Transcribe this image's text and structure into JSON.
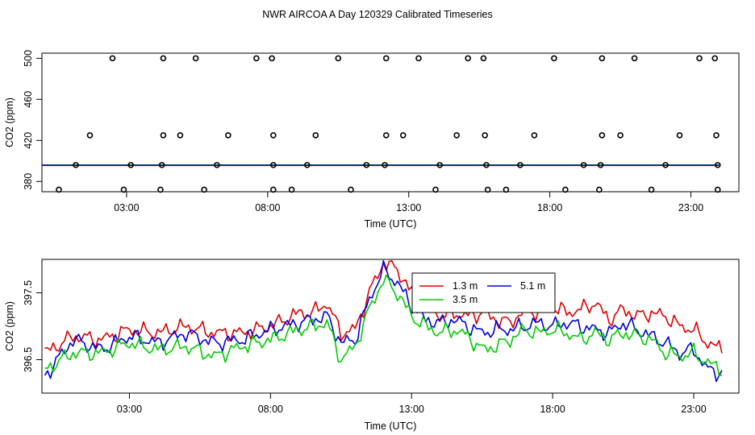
{
  "title": "NWR AIRCOA A  Day 120329  Calibrated Timeseries",
  "colors": {
    "red": "#dd0000",
    "green": "#00cc00",
    "blue": "#0000dd",
    "axis": "#000000"
  },
  "chart_data": [
    {
      "type": "scatter",
      "xlabel": "Time (UTC)",
      "ylabel": "CO2 (ppm)",
      "xlim": [
        0.0,
        24.7
      ],
      "ylim": [
        370.0,
        505.0
      ],
      "xticks": [
        3,
        8,
        13,
        18,
        23
      ],
      "xtick_labels": [
        "03:00",
        "08:00",
        "13:00",
        "18:00",
        "23:00"
      ],
      "yticks": [
        380,
        420,
        460,
        500
      ],
      "ytick_labels": [
        "380",
        "420",
        "460",
        "500"
      ],
      "points": {
        "x": [
          2.5,
          4.3,
          5.45,
          7.6,
          8.15,
          10.5,
          12.2,
          13.35,
          15.1,
          15.65,
          18.15,
          19.85,
          21.0,
          23.3,
          23.85,
          1.7,
          4.3,
          4.9,
          6.6,
          8.2,
          9.7,
          12.2,
          12.8,
          14.7,
          15.7,
          17.45,
          19.85,
          20.5,
          22.6,
          23.9,
          1.2,
          3.15,
          4.25,
          6.2,
          8.2,
          9.4,
          11.5,
          12.15,
          14.1,
          15.75,
          16.95,
          19.2,
          19.8,
          22.1,
          23.95,
          0.6,
          2.9,
          4.2,
          5.75,
          8.2,
          8.85,
          10.95,
          13.95,
          15.8,
          16.45,
          18.55,
          19.75,
          21.6,
          23.95
        ],
        "y": [
          500,
          500,
          500,
          500,
          500,
          500,
          500,
          500,
          500,
          500,
          500,
          500,
          500,
          500,
          500,
          425,
          425,
          425,
          425,
          425,
          425,
          425,
          425,
          425,
          425,
          425,
          425,
          425,
          425,
          425,
          396,
          396,
          396,
          396,
          396,
          396,
          396,
          396,
          396,
          396,
          396,
          396,
          396,
          396,
          396,
          372,
          372,
          372,
          372,
          372,
          372,
          372,
          372,
          372,
          372,
          372,
          372,
          372,
          372
        ]
      },
      "reference_line": {
        "x_start": 0.0,
        "x_end": 24.0,
        "y": 395.8
      }
    },
    {
      "type": "line",
      "xlabel": "Time (UTC)",
      "ylabel": "CO2 (ppm)",
      "xlim": [
        -0.1,
        24.6
      ],
      "ylim": [
        396.0,
        398.0
      ],
      "xticks": [
        3,
        8,
        13,
        18,
        23
      ],
      "xtick_labels": [
        "03:00",
        "08:00",
        "13:00",
        "18:00",
        "23:00"
      ],
      "yticks": [
        396.5,
        397.5
      ],
      "ytick_labels": [
        "396.5",
        "397.5"
      ],
      "legend": [
        "1.3 m",
        "5.1 m",
        "3.5 m"
      ],
      "series": [
        {
          "name": "1.3 m",
          "color": "#dd0000",
          "x": [
            0,
            1,
            2,
            3,
            4,
            5,
            6,
            7,
            8,
            9,
            9.5,
            10,
            10.5,
            11,
            11.5,
            12,
            12.5,
            13,
            13.5,
            14,
            14.5,
            15,
            15.5,
            16,
            16.5,
            17,
            17.5,
            18,
            18.5,
            19,
            19.5,
            20,
            20.5,
            21,
            21.5,
            22,
            22.5,
            23,
            23.5,
            24
          ],
          "y": [
            396.6,
            396.85,
            396.8,
            396.95,
            396.9,
            397.0,
            396.9,
            396.9,
            397.0,
            397.2,
            397.2,
            397.35,
            396.9,
            396.95,
            397.5,
            397.95,
            397.85,
            397.5,
            397.35,
            397.15,
            397.2,
            397.15,
            397.2,
            397.1,
            397.05,
            397.25,
            397.2,
            397.3,
            397.2,
            397.25,
            397.35,
            397.1,
            397.25,
            397.15,
            397.2,
            397.15,
            397.0,
            396.95,
            396.75,
            396.65
          ]
        },
        {
          "name": "3.5 m",
          "color": "#00cc00",
          "x": [
            0,
            1,
            2,
            3,
            4,
            5,
            6,
            7,
            8,
            9,
            9.5,
            10,
            10.5,
            11,
            11.5,
            12,
            12.5,
            13,
            13.5,
            14,
            14.5,
            15,
            15.5,
            16,
            16.5,
            17,
            17.5,
            18,
            18.5,
            19,
            19.5,
            20,
            20.5,
            21,
            21.5,
            22,
            22.5,
            23,
            23.5,
            24
          ],
          "y": [
            396.35,
            396.6,
            396.6,
            396.75,
            396.65,
            396.7,
            396.55,
            396.7,
            396.8,
            396.95,
            397.0,
            397.05,
            396.5,
            396.7,
            397.25,
            397.7,
            397.5,
            397.15,
            397.0,
            396.9,
            396.95,
            396.85,
            396.65,
            396.7,
            396.8,
            396.95,
            396.9,
            396.95,
            396.9,
            396.8,
            396.9,
            396.8,
            396.9,
            396.85,
            396.8,
            396.6,
            396.55,
            396.6,
            396.45,
            396.35
          ]
        },
        {
          "name": "5.1 m",
          "color": "#0000dd",
          "x": [
            0,
            1,
            2,
            3,
            4,
            5,
            6,
            7,
            8,
            9,
            9.5,
            10,
            10.5,
            11,
            11.5,
            12,
            12.5,
            13,
            13.5,
            14,
            14.5,
            15,
            15.5,
            16,
            16.5,
            17,
            17.5,
            18,
            18.5,
            19,
            19.5,
            20,
            20.5,
            21,
            21.5,
            22,
            22.5,
            23,
            23.5,
            24
          ],
          "y": [
            396.25,
            396.8,
            396.65,
            396.85,
            396.75,
            396.9,
            396.75,
            396.8,
            396.95,
            397.05,
            397.1,
            397.15,
            396.75,
            396.8,
            397.4,
            397.85,
            397.65,
            397.3,
            397.1,
            397.05,
            397.1,
            397.0,
            396.9,
            396.95,
            396.95,
            397.0,
            397.05,
            397.0,
            397.05,
            397.0,
            396.95,
            396.9,
            397.05,
            396.95,
            396.85,
            396.75,
            396.6,
            396.65,
            396.35,
            396.3
          ]
        }
      ]
    }
  ]
}
